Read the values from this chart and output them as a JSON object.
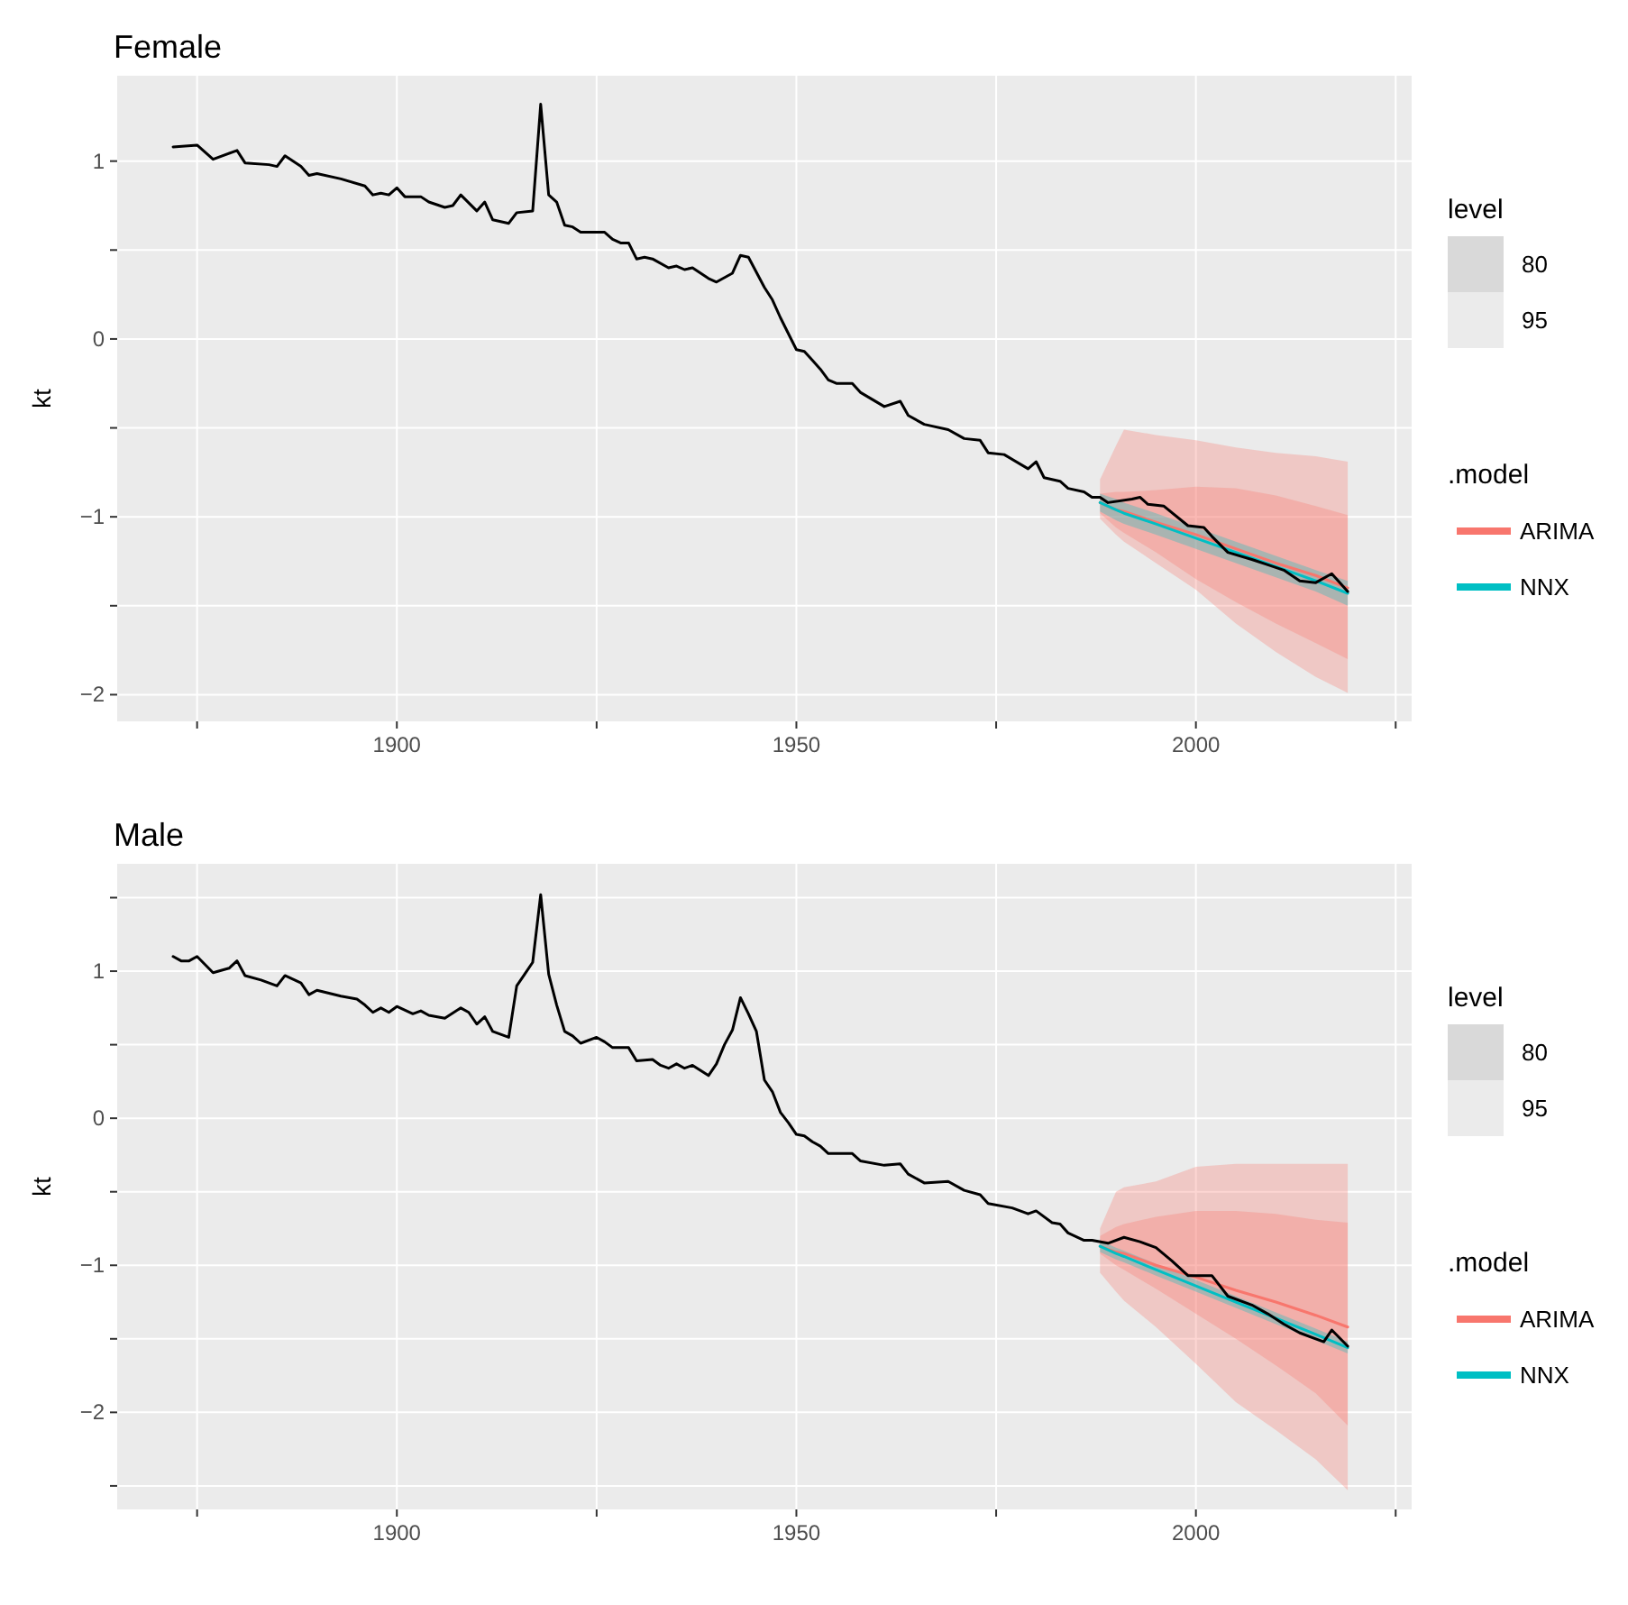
{
  "chart_data": [
    {
      "type": "line",
      "title": "Female",
      "ylabel": "kt",
      "legend_title": ".model",
      "legend": "right",
      "grid": true,
      "annotations": [
        "level",
        "80",
        "95"
      ],
      "xlim": [
        1865,
        2027
      ],
      "xticks": [
        {
          "value": 1875,
          "label": null
        },
        1900,
        {
          "value": 1925,
          "label": null
        },
        1950,
        {
          "value": 1975,
          "label": null
        },
        2000,
        {
          "value": 2025,
          "label": null
        }
      ],
      "ylim": [
        -2.15,
        1.48
      ],
      "yticks": [
        {
          "value": -2,
          "label": "−2"
        },
        {
          "value": -1.5,
          "label": null
        },
        {
          "value": -1,
          "label": "−1"
        },
        {
          "value": -0.5,
          "label": null
        },
        {
          "value": 0,
          "label": "0"
        },
        {
          "value": 0.5,
          "label": null
        },
        {
          "value": 1,
          "label": "1"
        }
      ],
      "series": [
        {
          "color": "#000000",
          "x": [
            1872,
            1875,
            1877,
            1880,
            1881,
            1884,
            1885,
            1886,
            1888,
            1889,
            1890,
            1893,
            1896,
            1897,
            1898,
            1899,
            1900,
            1901,
            1903,
            1904,
            1906,
            1907,
            1908,
            1910,
            1911,
            1912,
            1914,
            1915,
            1917,
            1918,
            1919,
            1920,
            1921,
            1922,
            1923,
            1926,
            1927,
            1928,
            1929,
            1930,
            1931,
            1932,
            1934,
            1935,
            1936,
            1937,
            1939,
            1940,
            1942,
            1943,
            1944,
            1946,
            1947,
            1948,
            1949,
            1950,
            1951,
            1952,
            1953,
            1954,
            1955,
            1957,
            1958,
            1961,
            1963,
            1964,
            1966,
            1969,
            1971,
            1973,
            1974,
            1976,
            1979,
            1980,
            1981,
            1983,
            1984,
            1986,
            1987,
            1988,
            1989,
            1992,
            1993,
            1994,
            1996,
            1999,
            2001,
            2002,
            2004,
            2007,
            2009,
            2011,
            2013,
            2015,
            2017,
            2019
          ],
          "values": [
            1.08,
            1.09,
            1.01,
            1.06,
            0.99,
            0.98,
            0.97,
            1.03,
            0.97,
            0.92,
            0.93,
            0.9,
            0.86,
            0.81,
            0.82,
            0.81,
            0.85,
            0.8,
            0.8,
            0.77,
            0.74,
            0.75,
            0.81,
            0.72,
            0.77,
            0.67,
            0.65,
            0.71,
            0.72,
            1.32,
            0.81,
            0.77,
            0.64,
            0.63,
            0.6,
            0.6,
            0.56,
            0.54,
            0.54,
            0.45,
            0.46,
            0.45,
            0.4,
            0.41,
            0.39,
            0.4,
            0.34,
            0.32,
            0.37,
            0.47,
            0.46,
            0.29,
            0.22,
            0.12,
            0.03,
            -0.06,
            -0.07,
            -0.12,
            -0.17,
            -0.23,
            -0.25,
            -0.25,
            -0.3,
            -0.38,
            -0.35,
            -0.43,
            -0.48,
            -0.51,
            -0.56,
            -0.57,
            -0.64,
            -0.65,
            -0.73,
            -0.69,
            -0.78,
            -0.8,
            -0.84,
            -0.86,
            -0.89,
            -0.89,
            -0.92,
            -0.9,
            -0.89,
            -0.93,
            -0.94,
            -1.05,
            -1.06,
            -1.11,
            -1.2,
            -1.24,
            -1.27,
            -1.3,
            -1.36,
            -1.37,
            -1.32,
            -1.42
          ]
        },
        {
          "name": "ARIMA",
          "color": "#f8766d",
          "x": [
            1988,
            1990,
            1991,
            1995,
            2000,
            2005,
            2010,
            2015,
            2019
          ],
          "values": [
            -0.92,
            -0.96,
            -0.97,
            -1.03,
            -1.1,
            -1.18,
            -1.26,
            -1.33,
            -1.4
          ],
          "lower": [
            -1.01,
            -1.1,
            -1.14,
            -1.26,
            -1.41,
            -1.6,
            -1.76,
            -1.9,
            -1.99
          ],
          "upper": [
            -0.79,
            -0.6,
            -0.51,
            -0.54,
            -0.57,
            -0.61,
            -0.64,
            -0.66,
            -0.69
          ]
        },
        {
          "color": "#f8766d",
          "x": [
            1988,
            1990,
            1991,
            1995,
            2000,
            2005,
            2010,
            2015,
            2019
          ],
          "values": [
            null,
            null,
            null,
            null,
            null,
            null,
            null,
            null,
            null
          ],
          "lower": [
            -0.98,
            -1.06,
            -1.09,
            -1.2,
            -1.35,
            -1.48,
            -1.6,
            -1.71,
            -1.8
          ],
          "upper": [
            -0.87,
            -0.86,
            -0.86,
            -0.85,
            -0.83,
            -0.84,
            -0.88,
            -0.94,
            -0.99
          ]
        },
        {
          "name": "NNX",
          "color": "#00bfc4",
          "x": [
            1988,
            1990,
            1991,
            1995,
            2000,
            2005,
            2010,
            2015,
            2019
          ],
          "values": [
            -0.92,
            -0.96,
            -0.98,
            -1.04,
            -1.12,
            -1.2,
            -1.28,
            -1.36,
            -1.43
          ],
          "lower": [
            -0.97,
            -1.02,
            -1.04,
            -1.1,
            -1.18,
            -1.26,
            -1.34,
            -1.42,
            -1.5
          ],
          "upper": [
            -0.87,
            -0.9,
            -0.92,
            -0.98,
            -1.06,
            -1.14,
            -1.22,
            -1.3,
            -1.36
          ]
        }
      ]
    },
    {
      "type": "line",
      "title": "Male",
      "ylabel": "kt",
      "legend_title": ".model",
      "legend": "right",
      "grid": true,
      "annotations": [
        "level",
        "80",
        "95"
      ],
      "xlim": [
        1865,
        2027
      ],
      "xticks": [
        {
          "value": 1875,
          "label": null
        },
        1900,
        {
          "value": 1925,
          "label": null
        },
        1950,
        {
          "value": 1975,
          "label": null
        },
        2000,
        {
          "value": 2025,
          "label": null
        }
      ],
      "ylim": [
        -2.66,
        1.73
      ],
      "yticks": [
        {
          "value": -2.5,
          "label": null
        },
        {
          "value": -2,
          "label": "−2"
        },
        {
          "value": -1.5,
          "label": null
        },
        {
          "value": -1,
          "label": "−1"
        },
        {
          "value": -0.5,
          "label": null
        },
        {
          "value": 0,
          "label": "0"
        },
        {
          "value": 0.5,
          "label": null
        },
        {
          "value": 1,
          "label": "1"
        },
        {
          "value": 1.5,
          "label": null
        }
      ],
      "series": [
        {
          "color": "#000000",
          "x": [
            1872,
            1873,
            1874,
            1875,
            1877,
            1879,
            1880,
            1881,
            1883,
            1885,
            1886,
            1888,
            1889,
            1890,
            1893,
            1895,
            1896,
            1897,
            1898,
            1899,
            1900,
            1902,
            1903,
            1904,
            1906,
            1908,
            1909,
            1910,
            1911,
            1912,
            1914,
            1915,
            1916,
            1917,
            1918,
            1919,
            1920,
            1921,
            1922,
            1923,
            1925,
            1926,
            1927,
            1929,
            1930,
            1932,
            1933,
            1934,
            1935,
            1936,
            1937,
            1939,
            1940,
            1941,
            1942,
            1943,
            1944,
            1945,
            1946,
            1947,
            1948,
            1949,
            1950,
            1951,
            1952,
            1953,
            1954,
            1957,
            1958,
            1961,
            1963,
            1964,
            1966,
            1969,
            1971,
            1973,
            1974,
            1977,
            1979,
            1980,
            1982,
            1983,
            1984,
            1986,
            1987,
            1989,
            1991,
            1993,
            1995,
            1997,
            1999,
            2002,
            2004,
            2007,
            2009,
            2011,
            2013,
            2015,
            2016,
            2017,
            2019
          ],
          "values": [
            1.1,
            1.07,
            1.07,
            1.1,
            0.99,
            1.02,
            1.07,
            0.97,
            0.94,
            0.9,
            0.97,
            0.92,
            0.84,
            0.87,
            0.83,
            0.81,
            0.77,
            0.72,
            0.75,
            0.72,
            0.76,
            0.71,
            0.73,
            0.7,
            0.68,
            0.75,
            0.72,
            0.64,
            0.69,
            0.59,
            0.55,
            0.9,
            0.98,
            1.06,
            1.52,
            0.98,
            0.77,
            0.59,
            0.56,
            0.51,
            0.55,
            0.52,
            0.48,
            0.48,
            0.39,
            0.4,
            0.36,
            0.34,
            0.37,
            0.34,
            0.36,
            0.29,
            0.37,
            0.5,
            0.6,
            0.82,
            0.71,
            0.59,
            0.26,
            0.18,
            0.04,
            -0.03,
            -0.11,
            -0.12,
            -0.16,
            -0.19,
            -0.24,
            -0.24,
            -0.29,
            -0.32,
            -0.31,
            -0.38,
            -0.44,
            -0.43,
            -0.49,
            -0.52,
            -0.58,
            -0.61,
            -0.65,
            -0.63,
            -0.71,
            -0.72,
            -0.78,
            -0.83,
            -0.83,
            -0.85,
            -0.81,
            -0.84,
            -0.88,
            -0.97,
            -1.07,
            -1.07,
            -1.21,
            -1.27,
            -1.33,
            -1.4,
            -1.46,
            -1.5,
            -1.52,
            -1.44,
            -1.55
          ]
        },
        {
          "name": "ARIMA",
          "color": "#f8766d",
          "x": [
            1988,
            1990,
            1991,
            1995,
            2000,
            2005,
            2010,
            2015,
            2019
          ],
          "values": [
            -0.87,
            -0.91,
            -0.92,
            -1.0,
            -1.08,
            -1.17,
            -1.25,
            -1.34,
            -1.42
          ],
          "lower": [
            -1.05,
            -1.18,
            -1.24,
            -1.42,
            -1.67,
            -1.93,
            -2.12,
            -2.32,
            -2.53
          ],
          "upper": [
            -0.75,
            -0.5,
            -0.47,
            -0.43,
            -0.33,
            -0.31,
            -0.31,
            -0.31,
            -0.31
          ]
        },
        {
          "color": "#f8766d",
          "x": [
            1988,
            1990,
            1991,
            1995,
            2000,
            2005,
            2010,
            2015,
            2019
          ],
          "values": [
            null,
            null,
            null,
            null,
            null,
            null,
            null,
            null,
            null
          ],
          "lower": [
            -0.92,
            -1.0,
            -1.03,
            -1.16,
            -1.33,
            -1.5,
            -1.68,
            -1.87,
            -2.09
          ],
          "upper": [
            -0.8,
            -0.74,
            -0.72,
            -0.67,
            -0.63,
            -0.63,
            -0.65,
            -0.69,
            -0.71
          ]
        },
        {
          "name": "NNX",
          "color": "#00bfc4",
          "x": [
            1988,
            1990,
            1991,
            1995,
            2000,
            2005,
            2010,
            2015,
            2019
          ],
          "values": [
            -0.87,
            -0.92,
            -0.94,
            -1.03,
            -1.14,
            -1.25,
            -1.36,
            -1.47,
            -1.56
          ],
          "lower": [
            -0.91,
            -0.96,
            -0.98,
            -1.07,
            -1.18,
            -1.29,
            -1.4,
            -1.51,
            -1.6
          ],
          "upper": [
            -0.83,
            -0.88,
            -0.9,
            -0.99,
            -1.1,
            -1.21,
            -1.32,
            -1.43,
            -1.52
          ]
        }
      ]
    }
  ]
}
